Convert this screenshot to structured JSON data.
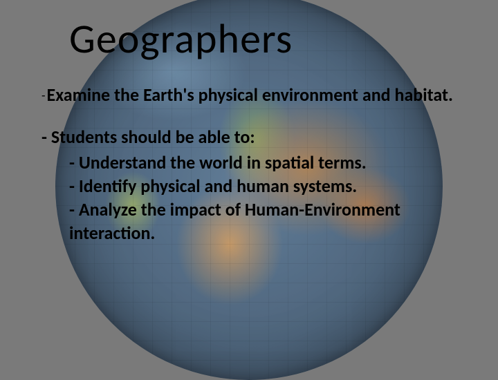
{
  "slide": {
    "title": "Geographers",
    "intro_prefix": "-",
    "intro": "Examine the Earth's physical environment and habitat.",
    "lead": "- Students should be able to:",
    "bullets": [
      "- Understand the world in spatial terms.",
      "- Identify physical and human systems.",
      "- Analyze  the impact of Human-Environment interaction."
    ],
    "background_color": "#7a7a7a",
    "globe_colors": {
      "ocean": "#5a7896",
      "land1": "#b88a5a",
      "land2": "#d6a36a",
      "land3": "#8aa86a",
      "polar": "#7da3c4"
    },
    "title_fontsize": 60,
    "body_fontsize": 26,
    "text_color": "#000000"
  }
}
